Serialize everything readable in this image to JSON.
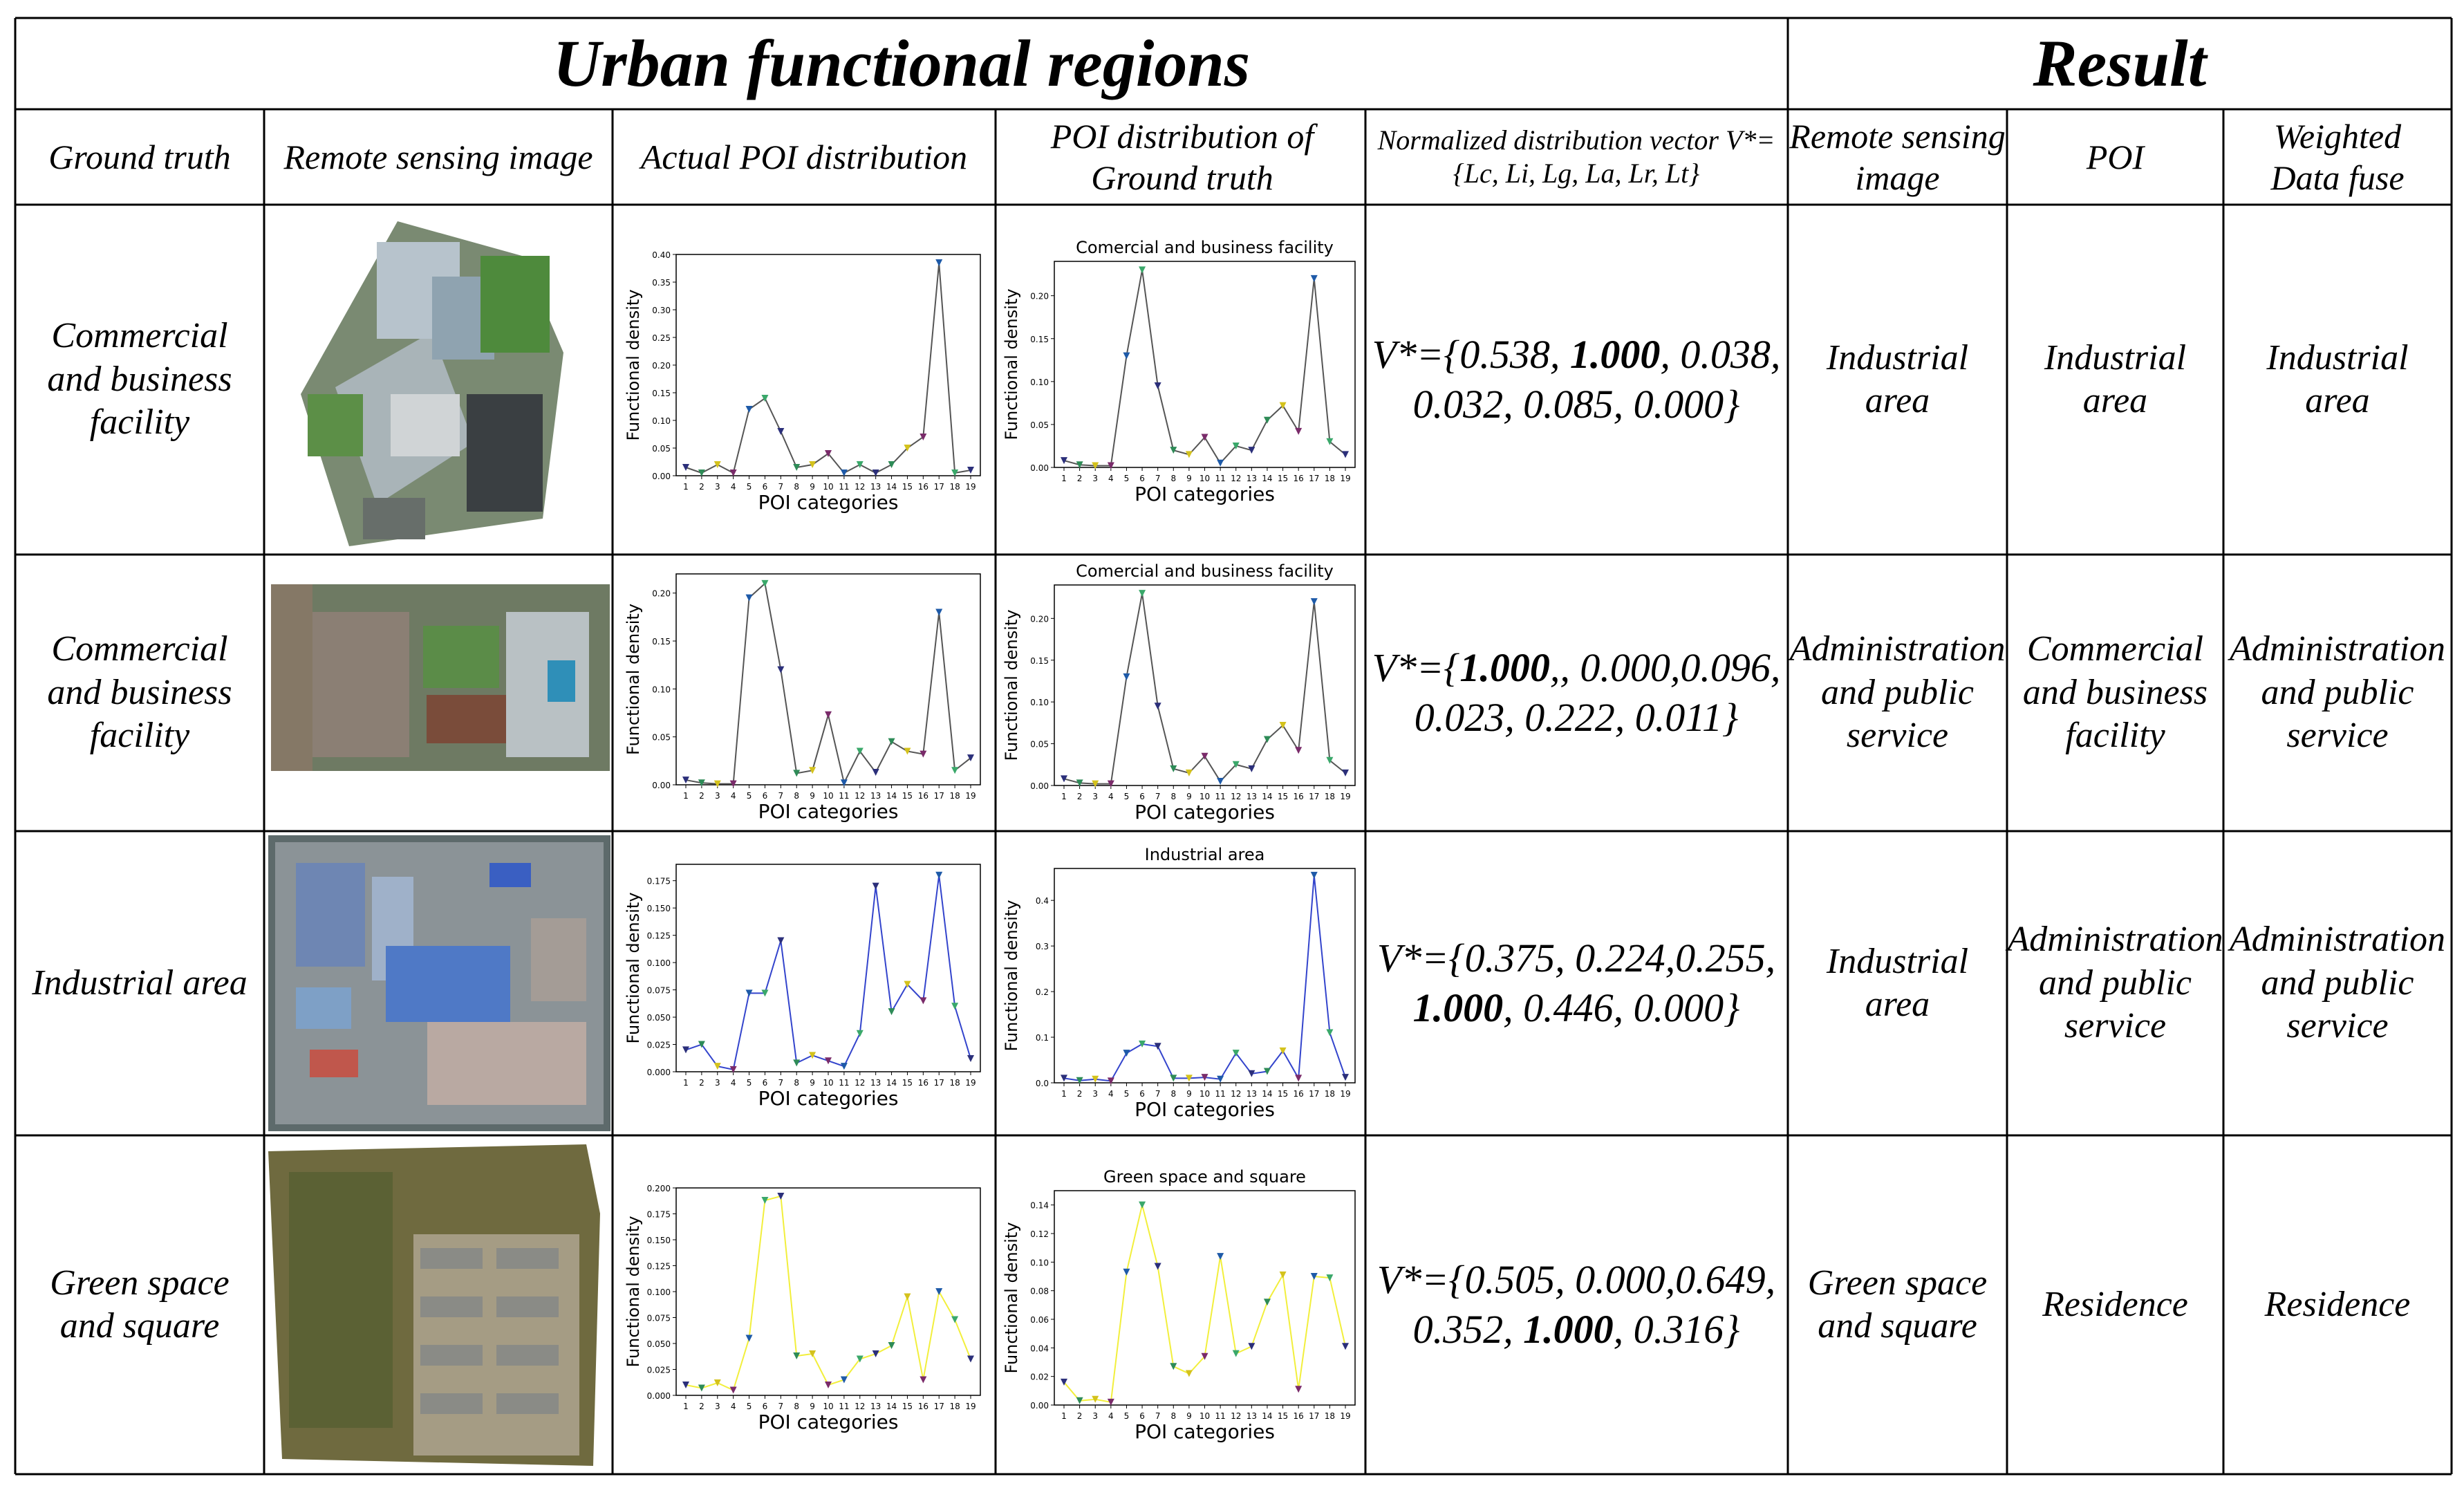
{
  "table": {
    "title_left": "Urban functional regions",
    "title_right": "Result",
    "headers": [
      "Ground truth",
      "Remote sensing image",
      "Actual POI distribution",
      "POI distribution of Ground truth",
      "Normalized distribution vector V*={Lc, Li, Lg, La, Lr, Lt}",
      "Remote sensing image",
      "POI",
      "Weighted Data fuse"
    ],
    "rows": [
      {
        "ground_truth": "Commercial and business facility",
        "vector_parts": [
          "V*={0.538, ",
          "1.000",
          ", 0.038, 0.032, 0.085, 0.000}"
        ],
        "result_rs": "Industrial area",
        "result_poi": "Industrial area",
        "result_fuse": "Industrial area"
      },
      {
        "ground_truth": "Commercial and business facility",
        "vector_parts": [
          "V*={",
          "1.000",
          ",, 0.000,0.096, 0.023, 0.222, 0.011}"
        ],
        "result_rs": "Administration and public service",
        "result_poi": "Commercial and business facility",
        "result_fuse": "Administration and public service"
      },
      {
        "ground_truth": "Industrial area",
        "vector_parts": [
          "V*={0.375, 0.224,0.255, ",
          "1.000",
          ", 0.446, 0.000}"
        ],
        "result_rs": "Industrial area",
        "result_poi": "Administration and public service",
        "result_fuse": "Administration and public service"
      },
      {
        "ground_truth": "Green space and square",
        "vector_parts": [
          "V*={0.505, 0.000,0.649, 0.352, ",
          "1.000",
          ", 0.316}"
        ],
        "result_rs": "Green space and square",
        "result_poi": "Residence",
        "result_fuse": "Residence"
      }
    ]
  },
  "chart_data": [
    {
      "type": "line",
      "panel": "row1-actual",
      "title": "",
      "xlabel": "POI categories",
      "ylabel": "Functional density",
      "x": [
        1,
        2,
        3,
        4,
        5,
        6,
        7,
        8,
        9,
        10,
        11,
        12,
        13,
        14,
        15,
        16,
        17,
        18,
        19
      ],
      "values": [
        0.015,
        0.005,
        0.02,
        0.005,
        0.12,
        0.14,
        0.08,
        0.015,
        0.02,
        0.04,
        0.005,
        0.02,
        0.005,
        0.02,
        0.05,
        0.07,
        0.385,
        0.005,
        0.01
      ],
      "ylim": [
        0,
        0.4
      ],
      "yticks": [
        "0.00",
        "0.05",
        "0.10",
        "0.15",
        "0.20",
        "0.25",
        "0.30",
        "0.35",
        "0.40"
      ],
      "line_color": "#555555"
    },
    {
      "type": "line",
      "panel": "row1-gt",
      "title": "Comercial and business facility",
      "xlabel": "POI categories",
      "ylabel": "Functional density",
      "x": [
        1,
        2,
        3,
        4,
        5,
        6,
        7,
        8,
        9,
        10,
        11,
        12,
        13,
        14,
        15,
        16,
        17,
        18,
        19
      ],
      "values": [
        0.008,
        0.003,
        0.002,
        0.002,
        0.13,
        0.23,
        0.095,
        0.02,
        0.015,
        0.035,
        0.005,
        0.025,
        0.02,
        0.055,
        0.072,
        0.042,
        0.22,
        0.03,
        0.015
      ],
      "ylim": [
        0,
        0.24
      ],
      "yticks": [
        "0.00",
        "0.05",
        "0.10",
        "0.15",
        "0.20"
      ],
      "line_color": "#555555"
    },
    {
      "type": "line",
      "panel": "row2-actual",
      "title": "",
      "xlabel": "POI categories",
      "ylabel": "Functional density",
      "x": [
        1,
        2,
        3,
        4,
        5,
        6,
        7,
        8,
        9,
        10,
        11,
        12,
        13,
        14,
        15,
        16,
        17,
        18,
        19
      ],
      "values": [
        0.005,
        0.002,
        0.001,
        0.001,
        0.195,
        0.21,
        0.12,
        0.012,
        0.015,
        0.073,
        0.002,
        0.035,
        0.013,
        0.045,
        0.035,
        0.032,
        0.18,
        0.015,
        0.028
      ],
      "ylim": [
        0,
        0.22
      ],
      "yticks": [
        "0.00",
        "0.05",
        "0.10",
        "0.15",
        "0.20"
      ],
      "line_color": "#555555"
    },
    {
      "type": "line",
      "panel": "row2-gt",
      "title": "Comercial and business facility",
      "xlabel": "POI categories",
      "ylabel": "Functional density",
      "x": [
        1,
        2,
        3,
        4,
        5,
        6,
        7,
        8,
        9,
        10,
        11,
        12,
        13,
        14,
        15,
        16,
        17,
        18,
        19
      ],
      "values": [
        0.008,
        0.003,
        0.002,
        0.002,
        0.13,
        0.23,
        0.095,
        0.02,
        0.015,
        0.035,
        0.005,
        0.025,
        0.02,
        0.055,
        0.072,
        0.042,
        0.22,
        0.03,
        0.015
      ],
      "ylim": [
        0,
        0.24
      ],
      "yticks": [
        "0.00",
        "0.05",
        "0.10",
        "0.15",
        "0.20"
      ],
      "line_color": "#555555"
    },
    {
      "type": "line",
      "panel": "row3-actual",
      "title": "",
      "xlabel": "POI categories",
      "ylabel": "Functional density",
      "x": [
        1,
        2,
        3,
        4,
        5,
        6,
        7,
        8,
        9,
        10,
        11,
        12,
        13,
        14,
        15,
        16,
        17,
        18,
        19
      ],
      "values": [
        0.02,
        0.025,
        0.005,
        0.002,
        0.072,
        0.072,
        0.12,
        0.008,
        0.015,
        0.01,
        0.005,
        0.035,
        0.17,
        0.055,
        0.08,
        0.065,
        0.18,
        0.06,
        0.012
      ],
      "ylim": [
        0,
        0.19
      ],
      "yticks": [
        "0.000",
        "0.025",
        "0.050",
        "0.075",
        "0.100",
        "0.125",
        "0.150",
        "0.175"
      ],
      "line_color": "#3344cc"
    },
    {
      "type": "line",
      "panel": "row3-gt",
      "title": "Industrial area",
      "xlabel": "POI categories",
      "ylabel": "Functional density",
      "x": [
        1,
        2,
        3,
        4,
        5,
        6,
        7,
        8,
        9,
        10,
        11,
        12,
        13,
        14,
        15,
        16,
        17,
        18,
        19
      ],
      "values": [
        0.01,
        0.005,
        0.008,
        0.004,
        0.065,
        0.085,
        0.08,
        0.01,
        0.01,
        0.012,
        0.008,
        0.065,
        0.02,
        0.025,
        0.07,
        0.01,
        0.455,
        0.11,
        0.012
      ],
      "ylim": [
        0,
        0.47
      ],
      "yticks": [
        "0.0",
        "0.1",
        "0.2",
        "0.3",
        "0.4"
      ],
      "line_color": "#3344cc"
    },
    {
      "type": "line",
      "panel": "row4-actual",
      "title": "",
      "xlabel": "POI categories",
      "ylabel": "Functional density",
      "x": [
        1,
        2,
        3,
        4,
        5,
        6,
        7,
        8,
        9,
        10,
        11,
        12,
        13,
        14,
        15,
        16,
        17,
        18,
        19
      ],
      "values": [
        0.01,
        0.007,
        0.012,
        0.005,
        0.055,
        0.188,
        0.192,
        0.038,
        0.04,
        0.01,
        0.015,
        0.035,
        0.04,
        0.048,
        0.095,
        0.015,
        0.1,
        0.073,
        0.035
      ],
      "ylim": [
        0,
        0.2
      ],
      "yticks": [
        "0.000",
        "0.025",
        "0.050",
        "0.075",
        "0.100",
        "0.125",
        "0.150",
        "0.175",
        "0.200"
      ],
      "line_color": "#f2ef3c"
    },
    {
      "type": "line",
      "panel": "row4-gt",
      "title": "Green space and square",
      "xlabel": "POI categories",
      "ylabel": "Functional density",
      "x": [
        1,
        2,
        3,
        4,
        5,
        6,
        7,
        8,
        9,
        10,
        11,
        12,
        13,
        14,
        15,
        16,
        17,
        18,
        19
      ],
      "values": [
        0.016,
        0.003,
        0.004,
        0.002,
        0.093,
        0.14,
        0.097,
        0.027,
        0.022,
        0.034,
        0.104,
        0.036,
        0.041,
        0.072,
        0.091,
        0.011,
        0.09,
        0.089,
        0.041
      ],
      "ylim": [
        0,
        0.15
      ],
      "yticks": [
        "0.00",
        "0.02",
        "0.04",
        "0.06",
        "0.08",
        "0.10",
        "0.12",
        "0.14"
      ],
      "line_color": "#f2ef3c"
    }
  ],
  "colors": {
    "grid_line": "#000000",
    "marker_palette": [
      "#2b2f7a",
      "#2e8b57",
      "#d4c21c",
      "#7a2b6a",
      "#1e5aa8",
      "#3aa86a"
    ]
  }
}
